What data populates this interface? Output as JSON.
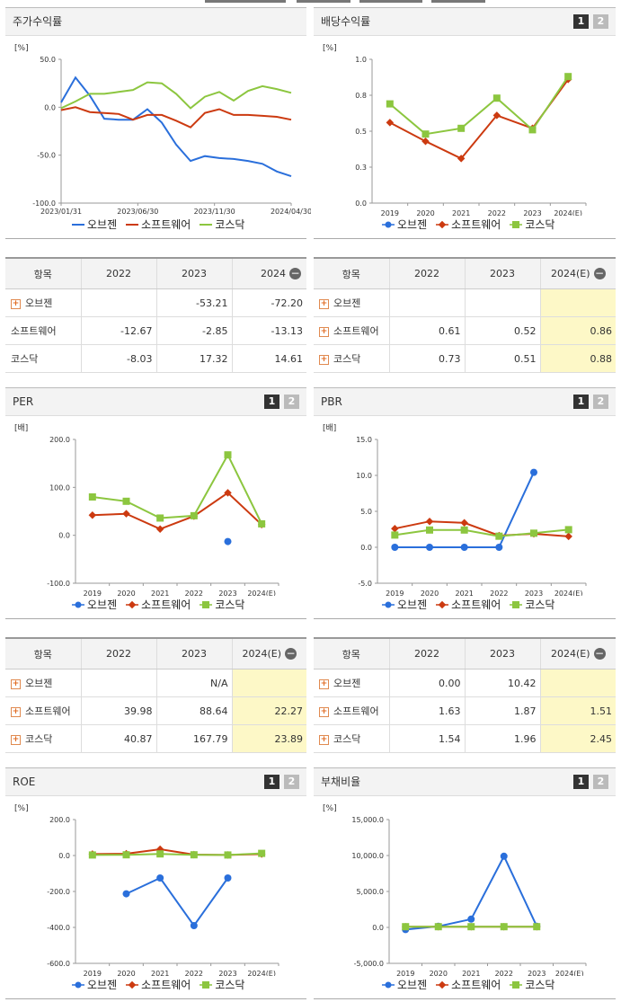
{
  "legend": {
    "obz": "오브젠",
    "soft": "소프트웨어",
    "kosdaq": "코스닥"
  },
  "colors": {
    "obz": "#2a6fdb",
    "soft": "#cc3a10",
    "kosdaq": "#8cc63f"
  },
  "icons": {
    "expand": "plus-icon",
    "collapse": "minus-icon"
  },
  "pages": {
    "p1": "1",
    "p2": "2"
  },
  "panels": {
    "stock_return": "주가수익률",
    "dividend": "배당수익률",
    "per": "PER",
    "pbr": "PBR",
    "roe": "ROE",
    "debt": "부채비율"
  },
  "tables": {
    "stock_return": {
      "headers": [
        "항목",
        "2022",
        "2023",
        "2024"
      ],
      "rows": [
        {
          "name": "오브젠",
          "v": [
            "",
            "-53.21",
            "-72.20"
          ],
          "expand": true
        },
        {
          "name": "소프트웨어",
          "v": [
            "-12.67",
            "-2.85",
            "-13.13"
          ],
          "expand": false
        },
        {
          "name": "코스닥",
          "v": [
            "-8.03",
            "17.32",
            "14.61"
          ],
          "expand": false
        }
      ]
    },
    "dividend": {
      "headers": [
        "항목",
        "2022",
        "2023",
        "2024(E)"
      ],
      "rows": [
        {
          "name": "오브젠",
          "v": [
            "",
            "",
            ""
          ],
          "expand": true
        },
        {
          "name": "소프트웨어",
          "v": [
            "0.61",
            "0.52",
            "0.86"
          ],
          "expand": true
        },
        {
          "name": "코스닥",
          "v": [
            "0.73",
            "0.51",
            "0.88"
          ],
          "expand": true
        }
      ]
    },
    "per": {
      "headers": [
        "항목",
        "2022",
        "2023",
        "2024(E)"
      ],
      "rows": [
        {
          "name": "오브젠",
          "v": [
            "",
            "N/A",
            ""
          ],
          "expand": true
        },
        {
          "name": "소프트웨어",
          "v": [
            "39.98",
            "88.64",
            "22.27"
          ],
          "expand": true
        },
        {
          "name": "코스닥",
          "v": [
            "40.87",
            "167.79",
            "23.89"
          ],
          "expand": true
        }
      ]
    },
    "pbr": {
      "headers": [
        "항목",
        "2022",
        "2023",
        "2024(E)"
      ],
      "rows": [
        {
          "name": "오브젠",
          "v": [
            "0.00",
            "10.42",
            ""
          ],
          "expand": true
        },
        {
          "name": "소프트웨어",
          "v": [
            "1.63",
            "1.87",
            "1.51"
          ],
          "expand": true
        },
        {
          "name": "코스닥",
          "v": [
            "1.54",
            "1.96",
            "2.45"
          ],
          "expand": true
        }
      ]
    }
  },
  "chart_data": [
    {
      "id": "stock_return",
      "type": "line",
      "unit": "[%]",
      "ylim": [
        -100,
        50
      ],
      "yticks": [
        "50.0",
        "0.0",
        "-50.0",
        "-100.0"
      ],
      "xticks": [
        "2023/01/31",
        "2023/06/30",
        "2023/11/30",
        "2024/04/30"
      ],
      "x": [
        0,
        1,
        2,
        3,
        4,
        5,
        6,
        7,
        8,
        9,
        10,
        11,
        12,
        13,
        14,
        15,
        16
      ],
      "xrange": [
        0,
        16
      ],
      "series": [
        {
          "key": "obz",
          "values": [
            5,
            31,
            12,
            -12,
            -13,
            -13,
            -2,
            -16,
            -39,
            -56,
            -51,
            -53,
            -54,
            -56,
            -59,
            -67,
            -72
          ]
        },
        {
          "key": "soft",
          "values": [
            -3,
            0,
            -5,
            -6,
            -7,
            -13,
            -8,
            -8,
            -14,
            -21,
            -6,
            -2,
            -8,
            -8,
            -9,
            -10,
            -13
          ]
        },
        {
          "key": "kosdaq",
          "values": [
            -1,
            6,
            14,
            14,
            16,
            18,
            26,
            25,
            14,
            -1,
            11,
            16,
            7,
            17,
            22,
            19,
            15
          ]
        }
      ]
    },
    {
      "id": "dividend",
      "type": "line",
      "unit": "[%]",
      "ylim": [
        0,
        1
      ],
      "yticks": [
        "1.0",
        "0.8",
        "0.5",
        "0.3",
        "0.0"
      ],
      "categories": [
        "2019",
        "2020",
        "2021",
        "2022",
        "2023",
        "2024(E)"
      ],
      "series": [
        {
          "key": "soft",
          "values": [
            0.56,
            0.43,
            0.31,
            0.61,
            0.52,
            0.86
          ]
        },
        {
          "key": "kosdaq",
          "values": [
            0.69,
            0.48,
            0.52,
            0.73,
            0.51,
            0.88
          ]
        }
      ]
    },
    {
      "id": "per",
      "type": "line",
      "unit": "[배]",
      "ylim": [
        -100,
        200
      ],
      "yticks": [
        "200.0",
        "100.0",
        "0.0",
        "-100.0"
      ],
      "categories": [
        "2019",
        "2020",
        "2021",
        "2022",
        "2023",
        "2024(E)"
      ],
      "series": [
        {
          "key": "obz",
          "values": [
            null,
            null,
            null,
            null,
            -13,
            null
          ]
        },
        {
          "key": "soft",
          "values": [
            42,
            45,
            13,
            39.98,
            88.64,
            22.27
          ]
        },
        {
          "key": "kosdaq",
          "values": [
            80,
            71,
            36,
            40.87,
            167.79,
            23.89
          ]
        }
      ]
    },
    {
      "id": "pbr",
      "type": "line",
      "unit": "[배]",
      "ylim": [
        -5,
        15
      ],
      "yticks": [
        "15.0",
        "10.0",
        "5.0",
        "0.0",
        "-5.0"
      ],
      "categories": [
        "2019",
        "2020",
        "2021",
        "2022",
        "2023",
        "2024(E)"
      ],
      "series": [
        {
          "key": "obz",
          "values": [
            0,
            0,
            0,
            0,
            10.42,
            null
          ]
        },
        {
          "key": "soft",
          "values": [
            2.6,
            3.6,
            3.4,
            1.63,
            1.87,
            1.51
          ]
        },
        {
          "key": "kosdaq",
          "values": [
            1.7,
            2.4,
            2.4,
            1.54,
            1.96,
            2.45
          ]
        }
      ]
    },
    {
      "id": "roe",
      "type": "line",
      "unit": "[%]",
      "ylim": [
        -600,
        200
      ],
      "yticks": [
        "200.0",
        "0.0",
        "-200.0",
        "-400.0",
        "-600.0"
      ],
      "categories": [
        "2019",
        "2020",
        "2021",
        "2022",
        "2023",
        "2024(E)"
      ],
      "series": [
        {
          "key": "obz",
          "values": [
            null,
            -213,
            -125,
            -390,
            -125,
            null
          ]
        },
        {
          "key": "soft",
          "values": [
            8,
            10,
            35,
            5,
            3,
            8
          ]
        },
        {
          "key": "kosdaq",
          "values": [
            3,
            4,
            9,
            4,
            3,
            12
          ]
        }
      ]
    },
    {
      "id": "debt",
      "type": "line",
      "unit": "[%]",
      "ylim": [
        -5000,
        15000
      ],
      "yticks": [
        "15,000.0",
        "10,000.0",
        "5,000.0",
        "0.0",
        "-5,000.0"
      ],
      "categories": [
        "2019",
        "2020",
        "2021",
        "2022",
        "2023",
        "2024(E)"
      ],
      "series": [
        {
          "key": "obz",
          "values": [
            -300,
            150,
            1150,
            9900,
            150,
            null
          ]
        },
        {
          "key": "soft",
          "values": [
            100,
            100,
            100,
            100,
            100,
            null
          ]
        },
        {
          "key": "kosdaq",
          "values": [
            100,
            100,
            100,
            100,
            100,
            null
          ]
        }
      ]
    }
  ]
}
